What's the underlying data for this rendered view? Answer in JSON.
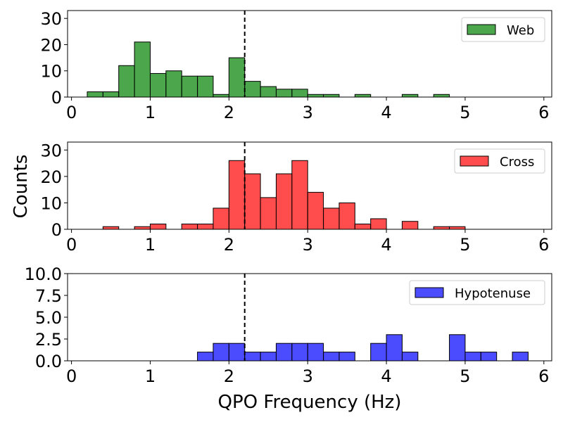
{
  "chart_data": {
    "type": "bar",
    "xlabel": "QPO Frequency (Hz)",
    "ylabel": "Counts",
    "reference_line_x": 2.2,
    "bin_width": 0.2,
    "panels": [
      {
        "name": "web",
        "legend": "Web",
        "color": "#008000",
        "xlim": [
          -0.05,
          6.1
        ],
        "ylim": [
          0,
          33
        ],
        "xticks": [
          "0",
          "1",
          "2",
          "3",
          "4",
          "5",
          "6"
        ],
        "yticks": [
          "0",
          "10",
          "20",
          "30"
        ],
        "ytick_values": [
          0,
          10,
          20,
          30
        ],
        "bins": [
          {
            "x": 0.2,
            "value": 2
          },
          {
            "x": 0.4,
            "value": 2
          },
          {
            "x": 0.6,
            "value": 12
          },
          {
            "x": 0.8,
            "value": 21
          },
          {
            "x": 1.0,
            "value": 9
          },
          {
            "x": 1.2,
            "value": 10
          },
          {
            "x": 1.4,
            "value": 8
          },
          {
            "x": 1.6,
            "value": 8
          },
          {
            "x": 1.8,
            "value": 1
          },
          {
            "x": 2.0,
            "value": 15
          },
          {
            "x": 2.2,
            "value": 6
          },
          {
            "x": 2.4,
            "value": 4
          },
          {
            "x": 2.6,
            "value": 3
          },
          {
            "x": 2.8,
            "value": 3
          },
          {
            "x": 3.0,
            "value": 1
          },
          {
            "x": 3.2,
            "value": 1
          },
          {
            "x": 3.6,
            "value": 1
          },
          {
            "x": 4.2,
            "value": 1
          },
          {
            "x": 4.6,
            "value": 1
          }
        ]
      },
      {
        "name": "cross",
        "legend": "Cross",
        "color": "#ff0000",
        "xlim": [
          -0.05,
          6.1
        ],
        "ylim": [
          0,
          33
        ],
        "xticks": [
          "0",
          "1",
          "2",
          "3",
          "4",
          "5",
          "6"
        ],
        "yticks": [
          "0",
          "10",
          "20",
          "30"
        ],
        "ytick_values": [
          0,
          10,
          20,
          30
        ],
        "bins": [
          {
            "x": 0.4,
            "value": 1
          },
          {
            "x": 0.8,
            "value": 1
          },
          {
            "x": 1.0,
            "value": 2
          },
          {
            "x": 1.4,
            "value": 2
          },
          {
            "x": 1.6,
            "value": 2
          },
          {
            "x": 1.8,
            "value": 8
          },
          {
            "x": 2.0,
            "value": 26
          },
          {
            "x": 2.2,
            "value": 21
          },
          {
            "x": 2.4,
            "value": 12
          },
          {
            "x": 2.6,
            "value": 21
          },
          {
            "x": 2.8,
            "value": 26
          },
          {
            "x": 3.0,
            "value": 14
          },
          {
            "x": 3.2,
            "value": 8
          },
          {
            "x": 3.4,
            "value": 10
          },
          {
            "x": 3.6,
            "value": 2
          },
          {
            "x": 3.8,
            "value": 4
          },
          {
            "x": 4.2,
            "value": 3
          },
          {
            "x": 4.6,
            "value": 1
          },
          {
            "x": 4.8,
            "value": 1
          }
        ]
      },
      {
        "name": "hypotenuse",
        "legend": "Hypotenuse",
        "color": "#0000ff",
        "xlim": [
          -0.05,
          6.1
        ],
        "ylim": [
          0,
          10
        ],
        "xticks": [
          "0",
          "1",
          "2",
          "3",
          "4",
          "5",
          "6"
        ],
        "yticks": [
          "0.0",
          "2.5",
          "5.0",
          "7.5",
          "10.0"
        ],
        "ytick_values": [
          0,
          2.5,
          5,
          7.5,
          10
        ],
        "bins": [
          {
            "x": 1.6,
            "value": 1
          },
          {
            "x": 1.8,
            "value": 2
          },
          {
            "x": 2.0,
            "value": 2
          },
          {
            "x": 2.2,
            "value": 1
          },
          {
            "x": 2.4,
            "value": 1
          },
          {
            "x": 2.6,
            "value": 2
          },
          {
            "x": 2.8,
            "value": 2
          },
          {
            "x": 3.0,
            "value": 2
          },
          {
            "x": 3.2,
            "value": 1
          },
          {
            "x": 3.4,
            "value": 1
          },
          {
            "x": 3.8,
            "value": 2
          },
          {
            "x": 4.0,
            "value": 3
          },
          {
            "x": 4.2,
            "value": 1
          },
          {
            "x": 4.8,
            "value": 3
          },
          {
            "x": 5.0,
            "value": 1
          },
          {
            "x": 5.2,
            "value": 1
          },
          {
            "x": 5.6,
            "value": 1
          }
        ]
      }
    ]
  }
}
